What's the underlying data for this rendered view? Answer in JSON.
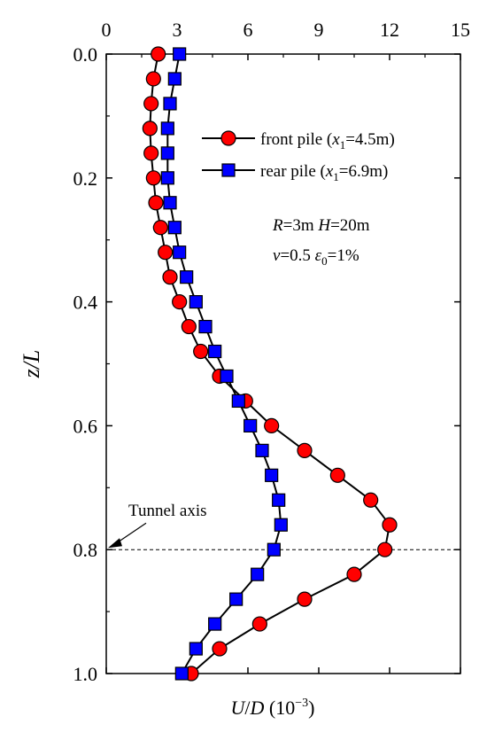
{
  "chart_data": {
    "type": "line",
    "x_label_prefix": "U/D (10",
    "x_label_exp": "−3",
    "x_label_suffix": ")",
    "y_label": "z/L",
    "xlim": [
      0,
      15
    ],
    "ylim": [
      0,
      1
    ],
    "x_ticks": [
      0,
      3,
      6,
      9,
      12,
      15
    ],
    "y_ticks": [
      0.0,
      0.2,
      0.4,
      0.6,
      0.8,
      1.0
    ],
    "x_tick_labels": [
      "0",
      "3",
      "6",
      "9",
      "12",
      "15"
    ],
    "y_tick_labels": [
      "0.0",
      "0.2",
      "0.4",
      "0.6",
      "0.8",
      "1.0"
    ],
    "x_axis_position": "top",
    "y_axis_inverted": true,
    "grid": false,
    "legend_placement": "top-right",
    "series": [
      {
        "name": "front pile (x1=4.5m)",
        "legend_main": "front pile (",
        "legend_var": "x",
        "legend_sub": "1",
        "legend_tail": "=4.5m)",
        "marker": "circle",
        "color": "#ff0000",
        "points": [
          [
            2.2,
            0.0
          ],
          [
            2.0,
            0.04
          ],
          [
            1.9,
            0.08
          ],
          [
            1.85,
            0.12
          ],
          [
            1.9,
            0.16
          ],
          [
            2.0,
            0.2
          ],
          [
            2.1,
            0.24
          ],
          [
            2.3,
            0.28
          ],
          [
            2.5,
            0.32
          ],
          [
            2.7,
            0.36
          ],
          [
            3.1,
            0.4
          ],
          [
            3.5,
            0.44
          ],
          [
            4.0,
            0.48
          ],
          [
            4.8,
            0.52
          ],
          [
            5.9,
            0.56
          ],
          [
            7.0,
            0.6
          ],
          [
            8.4,
            0.64
          ],
          [
            9.8,
            0.68
          ],
          [
            11.2,
            0.72
          ],
          [
            12.0,
            0.76
          ],
          [
            11.8,
            0.8
          ],
          [
            10.5,
            0.84
          ],
          [
            8.4,
            0.88
          ],
          [
            6.5,
            0.92
          ],
          [
            4.8,
            0.96
          ],
          [
            3.6,
            1.0
          ]
        ]
      },
      {
        "name": "rear pile (x1=6.9m)",
        "legend_main": "rear pile (",
        "legend_var": "x",
        "legend_sub": "1",
        "legend_tail": "=6.9m)",
        "marker": "square",
        "color": "#0000ff",
        "points": [
          [
            3.1,
            0.0
          ],
          [
            2.9,
            0.04
          ],
          [
            2.7,
            0.08
          ],
          [
            2.6,
            0.12
          ],
          [
            2.6,
            0.16
          ],
          [
            2.6,
            0.2
          ],
          [
            2.7,
            0.24
          ],
          [
            2.9,
            0.28
          ],
          [
            3.1,
            0.32
          ],
          [
            3.4,
            0.36
          ],
          [
            3.8,
            0.4
          ],
          [
            4.2,
            0.44
          ],
          [
            4.6,
            0.48
          ],
          [
            5.1,
            0.52
          ],
          [
            5.6,
            0.56
          ],
          [
            6.1,
            0.6
          ],
          [
            6.6,
            0.64
          ],
          [
            7.0,
            0.68
          ],
          [
            7.3,
            0.72
          ],
          [
            7.4,
            0.76
          ],
          [
            7.1,
            0.8
          ],
          [
            6.4,
            0.84
          ],
          [
            5.5,
            0.88
          ],
          [
            4.6,
            0.92
          ],
          [
            3.8,
            0.96
          ],
          [
            3.2,
            1.0
          ]
        ]
      }
    ],
    "params": {
      "line1": [
        {
          "t": "R",
          "i": true
        },
        {
          "t": "=3m  ",
          "i": false
        },
        {
          "t": "H",
          "i": true
        },
        {
          "t": "=20m",
          "i": false
        }
      ],
      "line2": [
        {
          "t": "v",
          "i": true
        },
        {
          "t": "=0.5  ",
          "i": false
        },
        {
          "t": "ε",
          "i": true
        },
        {
          "t": "0",
          "i": false,
          "sub": true
        },
        {
          "t": "=1%",
          "i": false
        }
      ]
    },
    "reference_line": {
      "y": 0.8,
      "style": "dashed"
    },
    "annotation": {
      "text": "Tunnel axis",
      "target_y": 0.8,
      "target_x": 0
    }
  }
}
